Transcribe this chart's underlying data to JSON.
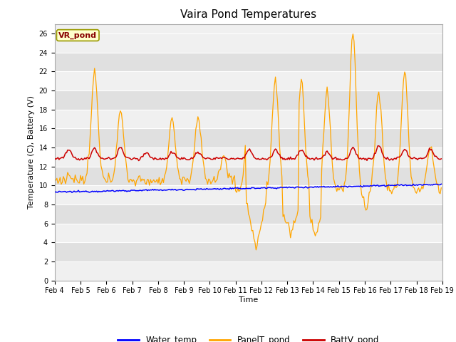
{
  "title": "Vaira Pond Temperatures",
  "xlabel": "Time",
  "ylabel": "Temperature (C), Battery (V)",
  "annotation": "VR_pond",
  "ylim": [
    0,
    27
  ],
  "yticks": [
    0,
    2,
    4,
    6,
    8,
    10,
    12,
    14,
    16,
    18,
    20,
    22,
    24,
    26
  ],
  "xtick_labels": [
    "Feb 4",
    "Feb 5",
    "Feb 6",
    "Feb 7",
    "Feb 8",
    "Feb 9",
    "Feb 10",
    "Feb 11",
    "Feb 12",
    "Feb 13",
    "Feb 14",
    "Feb 15",
    "Feb 16",
    "Feb 17",
    "Feb 18",
    "Feb 19"
  ],
  "water_temp_color": "#0000ff",
  "panel_temp_color": "#ffa500",
  "battv_color": "#cc0000",
  "plot_bg_light": "#f0f0f0",
  "plot_bg_dark": "#e0e0e0",
  "grid_color": "#ffffff",
  "legend_labels": [
    "Water_temp",
    "PanelT_pond",
    "BattV_pond"
  ],
  "annotation_bg": "#ffffcc",
  "annotation_border": "#999900",
  "annotation_text_color": "#880000",
  "title_fontsize": 11,
  "tick_fontsize": 7,
  "label_fontsize": 8
}
